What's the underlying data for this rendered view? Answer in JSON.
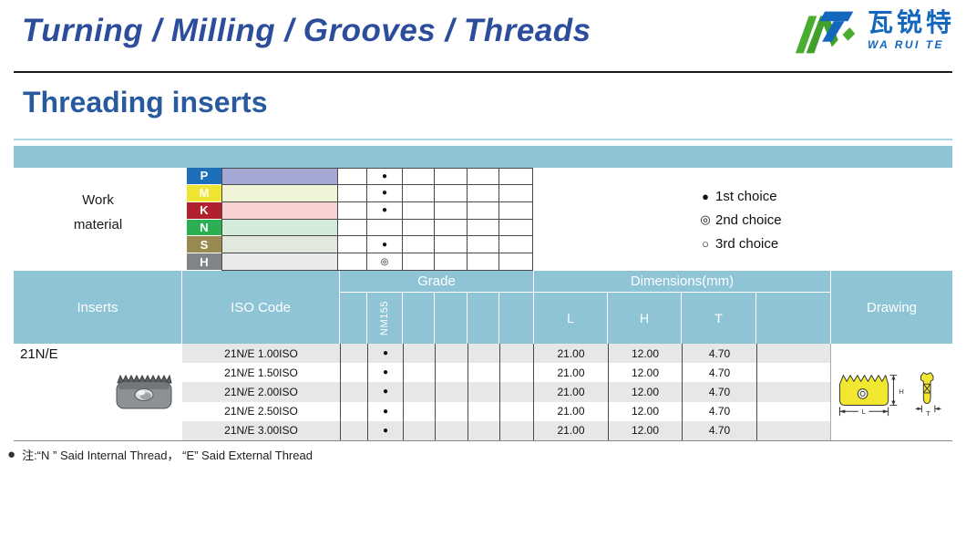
{
  "colors": {
    "title-blue": "#2b4d9b",
    "section-blue": "#2a5a9e",
    "logo-blue": "#1467bd",
    "rule-blue": "#a9d6e5",
    "teal": "#8ec4d6",
    "grid": "#4a4a4a",
    "shade": "#e7e7e7",
    "yellow": "#f2e730"
  },
  "header": {
    "title": "Turning / Milling / Grooves / Threads",
    "logo": {
      "cn": "瓦锐特",
      "en": "WA RUI TE"
    }
  },
  "section": {
    "title": "Threading inserts"
  },
  "work_material": {
    "label_line1": "Work",
    "label_line2": "material",
    "rows": [
      {
        "letter": "P",
        "letter_color": "#1d6fba",
        "band_color": "#a3a9d4",
        "marks": [
          "",
          "●",
          "",
          "",
          "",
          ""
        ]
      },
      {
        "letter": "M",
        "letter_color": "#f0e531",
        "band_color": "#f0f5da",
        "marks": [
          "",
          "●",
          "",
          "",
          "",
          ""
        ]
      },
      {
        "letter": "K",
        "letter_color": "#b0202f",
        "band_color": "#f9d2d4",
        "marks": [
          "",
          "●",
          "",
          "",
          "",
          ""
        ]
      },
      {
        "letter": "N",
        "letter_color": "#2aaf52",
        "band_color": "#d3ebd8",
        "marks": [
          "",
          "",
          "",
          "",
          "",
          ""
        ]
      },
      {
        "letter": "S",
        "letter_color": "#97894f",
        "band_color": "#e3e8de",
        "marks": [
          "",
          "●",
          "",
          "",
          "",
          ""
        ]
      },
      {
        "letter": "H",
        "letter_color": "#818487",
        "band_color": "#eaeaea",
        "marks": [
          "",
          "◎",
          "",
          "",
          "",
          ""
        ]
      }
    ]
  },
  "legend": {
    "items": [
      {
        "symbol": "●",
        "label": "1st choice"
      },
      {
        "symbol": "◎",
        "label": "2nd choice"
      },
      {
        "symbol": "○",
        "label": "3rd choice"
      }
    ]
  },
  "table": {
    "headers": {
      "inserts": "Inserts",
      "iso_code": "ISO Code",
      "grade": "Grade",
      "dimensions": "Dimensions(mm)",
      "drawing": "Drawing",
      "grade_cols": [
        "",
        "NM155",
        "",
        "",
        "",
        ""
      ],
      "dim_cols": [
        "L",
        "H",
        "T",
        ""
      ]
    },
    "group_label": "21N/E",
    "rows": [
      {
        "iso": "21N/E 1.00ISO",
        "grade_marks": [
          "",
          "●",
          "",
          "",
          "",
          ""
        ],
        "L": "21.00",
        "H": "12.00",
        "T": "4.70"
      },
      {
        "iso": "21N/E 1.50ISO",
        "grade_marks": [
          "",
          "●",
          "",
          "",
          "",
          ""
        ],
        "L": "21.00",
        "H": "12.00",
        "T": "4.70"
      },
      {
        "iso": "21N/E 2.00ISO",
        "grade_marks": [
          "",
          "●",
          "",
          "",
          "",
          ""
        ],
        "L": "21.00",
        "H": "12.00",
        "T": "4.70"
      },
      {
        "iso": "21N/E 2.50ISO",
        "grade_marks": [
          "",
          "●",
          "",
          "",
          "",
          ""
        ],
        "L": "21.00",
        "H": "12.00",
        "T": "4.70"
      },
      {
        "iso": "21N/E 3.00ISO",
        "grade_marks": [
          "",
          "●",
          "",
          "",
          "",
          ""
        ],
        "L": "21.00",
        "H": "12.00",
        "T": "4.70"
      }
    ]
  },
  "drawing_labels": {
    "l": "L",
    "h": "H",
    "t": "T"
  },
  "note": {
    "bullet": "●",
    "text": "注:“N ” Said Internal Thread， “E” Said External Thread"
  }
}
